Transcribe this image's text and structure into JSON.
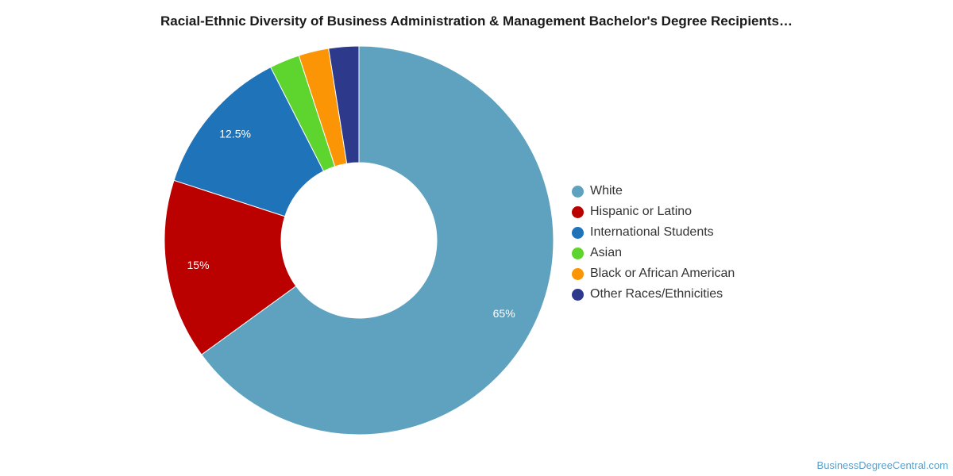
{
  "chart_data": {
    "type": "pie",
    "variant": "donut",
    "title": "Racial-Ethnic Diversity of Business Administration & Management Bachelor's Degree Recipients…",
    "categories": [
      "White",
      "Hispanic or Latino",
      "International Students",
      "Asian",
      "Black or African American",
      "Other Races/Ethnicities"
    ],
    "values": [
      65,
      15,
      12.5,
      2.5,
      2.5,
      2.5
    ],
    "data_labels": [
      "65%",
      "15%",
      "12.5%",
      "",
      "",
      ""
    ],
    "colors": [
      "#5fa2bf",
      "#bb0000",
      "#1f73b8",
      "#5ed42e",
      "#fb9505",
      "#2d3a8c"
    ],
    "legend_position": "right",
    "start": "top",
    "direction": "clockwise"
  },
  "credit": "BusinessDegreeCentral.com"
}
